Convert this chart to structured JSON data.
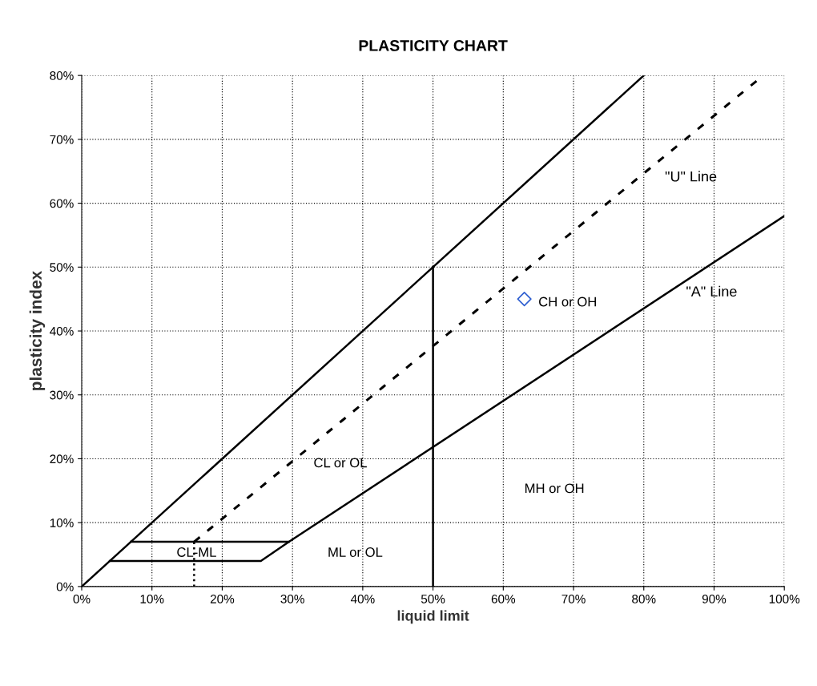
{
  "chart_data": {
    "type": "line",
    "title": "PLASTICITY CHART",
    "xlabel": "liquid limit",
    "ylabel": "plasticity index",
    "xlim": [
      0,
      100
    ],
    "ylim": [
      0,
      80
    ],
    "xticks": [
      {
        "value": 0,
        "label": "0%"
      },
      {
        "value": 10,
        "label": "10%"
      },
      {
        "value": 20,
        "label": "20%"
      },
      {
        "value": 30,
        "label": "30%"
      },
      {
        "value": 40,
        "label": "40%"
      },
      {
        "value": 50,
        "label": "50%"
      },
      {
        "value": 60,
        "label": "60%"
      },
      {
        "value": 70,
        "label": "70%"
      },
      {
        "value": 80,
        "label": "80%"
      },
      {
        "value": 90,
        "label": "90%"
      },
      {
        "value": 100,
        "label": "100%"
      }
    ],
    "yticks": [
      {
        "value": 0,
        "label": "0%"
      },
      {
        "value": 10,
        "label": "10%"
      },
      {
        "value": 20,
        "label": "20%"
      },
      {
        "value": 30,
        "label": "30%"
      },
      {
        "value": 40,
        "label": "40%"
      },
      {
        "value": 50,
        "label": "50%"
      },
      {
        "value": 60,
        "label": "60%"
      },
      {
        "value": 70,
        "label": "70%"
      },
      {
        "value": 80,
        "label": "80%"
      }
    ],
    "grid": true,
    "legend": false,
    "series": [
      {
        "color": "#000000",
        "line_style": "solid",
        "x": [
          0,
          80
        ],
        "values": [
          0,
          80
        ]
      },
      {
        "color": "#000000",
        "line_style": "dashed",
        "x": [
          16,
          97
        ],
        "values": [
          7,
          80
        ]
      },
      {
        "color": "#000000",
        "line_style": "dotted",
        "x": [
          16,
          16
        ],
        "values": [
          0,
          7
        ]
      },
      {
        "color": "#000000",
        "line_style": "solid",
        "x": [
          4,
          25.5,
          29.5,
          100
        ],
        "values": [
          4,
          4,
          7,
          58
        ]
      },
      {
        "color": "#000000",
        "line_style": "solid",
        "x": [
          7,
          29.5
        ],
        "values": [
          7,
          7
        ]
      },
      {
        "color": "#000000",
        "line_style": "solid",
        "x": [
          50,
          50
        ],
        "values": [
          0,
          50
        ]
      },
      {
        "type": "scatter",
        "color": "#2f5fd0",
        "marker": "diamond",
        "x": [
          63
        ],
        "values": [
          45
        ]
      }
    ],
    "annotations": [
      "\"U\" Line",
      "\"A\" Line",
      "CH or OH",
      "CL or OL",
      "MH or OH",
      "ML or OL",
      "CL-ML"
    ]
  }
}
